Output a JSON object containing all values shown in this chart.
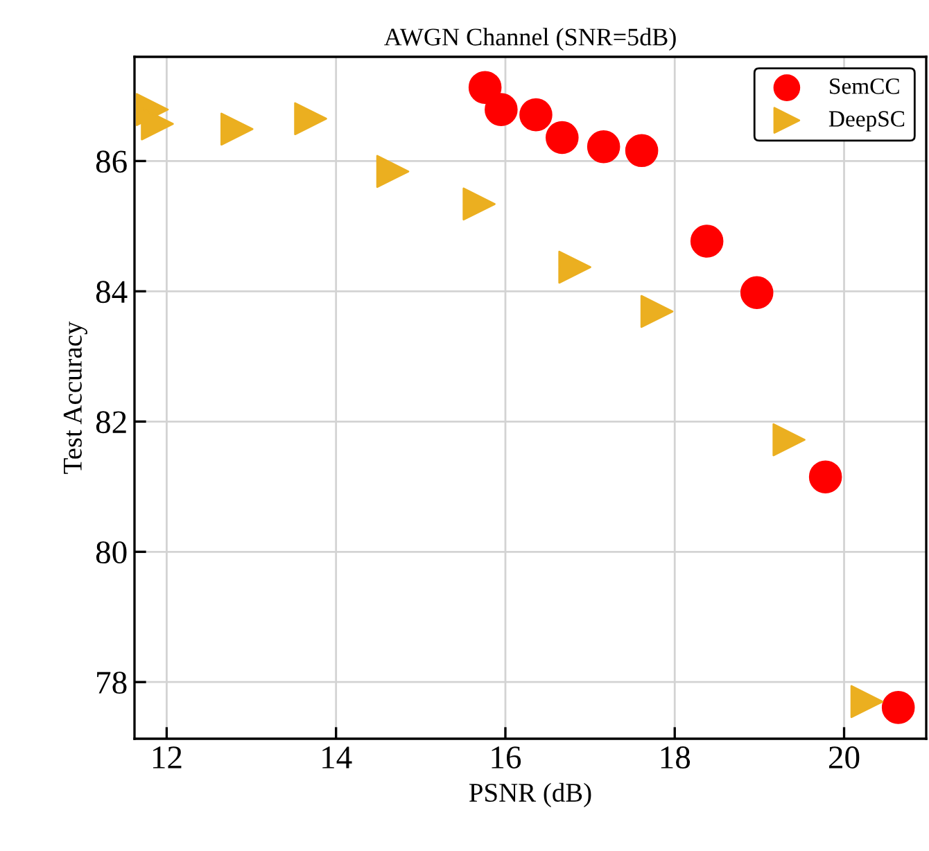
{
  "chart_data": {
    "type": "scatter",
    "title": "AWGN Channel (SNR=5dB)",
    "xlabel": "PSNR (dB)",
    "ylabel": "Test Accuracy",
    "xlim": [
      11.62,
      20.97
    ],
    "ylim": [
      77.13,
      87.6
    ],
    "xticks": [
      12,
      14,
      16,
      18,
      20
    ],
    "yticks": [
      78,
      80,
      82,
      84,
      86
    ],
    "grid": true,
    "legend": "top right",
    "series": [
      {
        "name": "SemCC",
        "color": "#ff0000",
        "marker": "circle",
        "x": [
          15.76,
          15.95,
          16.36,
          16.67,
          17.16,
          17.61,
          18.38,
          18.97,
          19.78,
          20.64
        ],
        "values": [
          87.13,
          86.79,
          86.71,
          86.36,
          86.22,
          86.16,
          84.77,
          83.98,
          81.15,
          77.61
        ]
      },
      {
        "name": "DeepSC",
        "color": "#ebaf20",
        "marker": "triangle",
        "x": [
          11.83,
          11.89,
          12.83,
          13.7,
          14.67,
          15.69,
          16.82,
          17.79,
          19.35,
          20.27
        ],
        "values": [
          86.79,
          86.57,
          86.49,
          86.65,
          85.84,
          85.34,
          84.37,
          83.69,
          81.72,
          77.7
        ]
      }
    ]
  }
}
